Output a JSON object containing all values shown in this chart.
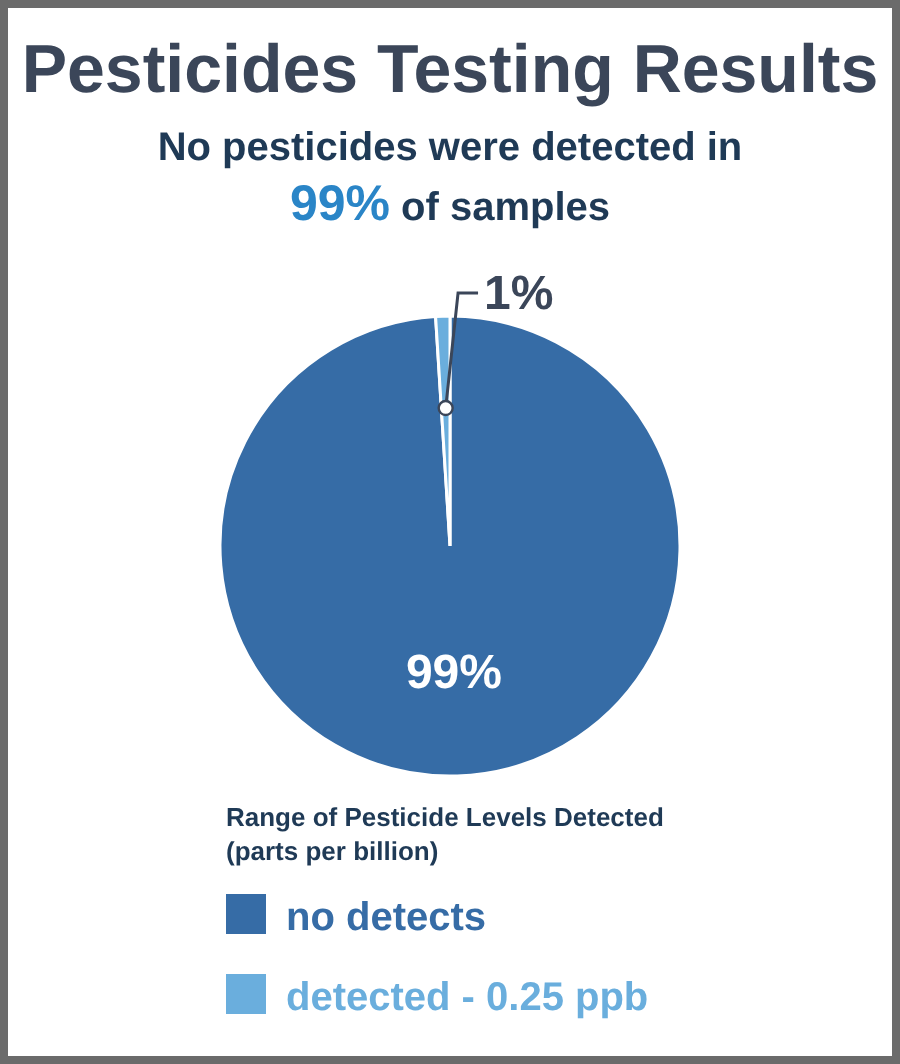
{
  "chart_data": {
    "type": "pie",
    "title": "Pesticides Testing Results",
    "subtitle": "No pesticides were detected in\n99% of samples",
    "legend_title": "Range of Pesticide Levels Detected\n(parts per billion)",
    "categories": [
      "no detects",
      "detected - 0.25 ppb"
    ],
    "values": [
      99,
      1
    ],
    "colors": [
      "#366ca6",
      "#6aaedd"
    ],
    "value_labels": [
      "99%",
      "1%"
    ],
    "legend": "bottom"
  }
}
